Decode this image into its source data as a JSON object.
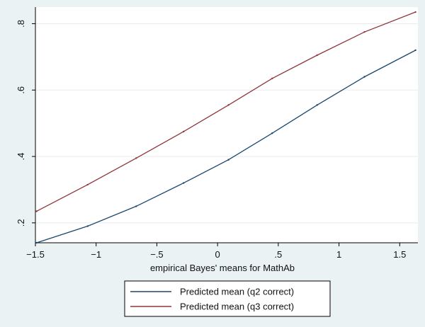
{
  "chart_data": {
    "type": "line",
    "title": "",
    "xlabel": "empirical Bayes' means for MathAb",
    "ylabel": "",
    "xlim": [
      -1.5,
      1.65
    ],
    "ylim": [
      0.14,
      0.85
    ],
    "grid": true,
    "legend_position": "bottom",
    "x_ticks": [
      {
        "value": -1.5,
        "label": "−1.5"
      },
      {
        "value": -1,
        "label": "−1"
      },
      {
        "value": -0.5,
        "label": "−.5"
      },
      {
        "value": 0,
        "label": "0"
      },
      {
        "value": 0.5,
        "label": ".5"
      },
      {
        "value": 1,
        "label": "1"
      },
      {
        "value": 1.5,
        "label": "1.5"
      }
    ],
    "y_ticks": [
      {
        "value": 0.2,
        "label": ".2"
      },
      {
        "value": 0.4,
        "label": ".4"
      },
      {
        "value": 0.6,
        "label": ".6"
      },
      {
        "value": 0.8,
        "label": ".8"
      }
    ],
    "series": [
      {
        "name": "Predicted mean (q2 correct)",
        "color": "#1a476f",
        "x": [
          -1.49,
          -1.07,
          -0.67,
          -0.28,
          0.09,
          0.45,
          0.82,
          1.21,
          1.63
        ],
        "y": [
          0.14,
          0.19,
          0.25,
          0.32,
          0.39,
          0.47,
          0.555,
          0.64,
          0.72
        ]
      },
      {
        "name": "Predicted mean (q3 correct)",
        "color": "#90353b",
        "x": [
          -1.49,
          -1.07,
          -0.67,
          -0.28,
          0.09,
          0.45,
          0.82,
          1.21,
          1.63
        ],
        "y": [
          0.235,
          0.315,
          0.395,
          0.475,
          0.555,
          0.635,
          0.705,
          0.775,
          0.835
        ]
      }
    ]
  }
}
